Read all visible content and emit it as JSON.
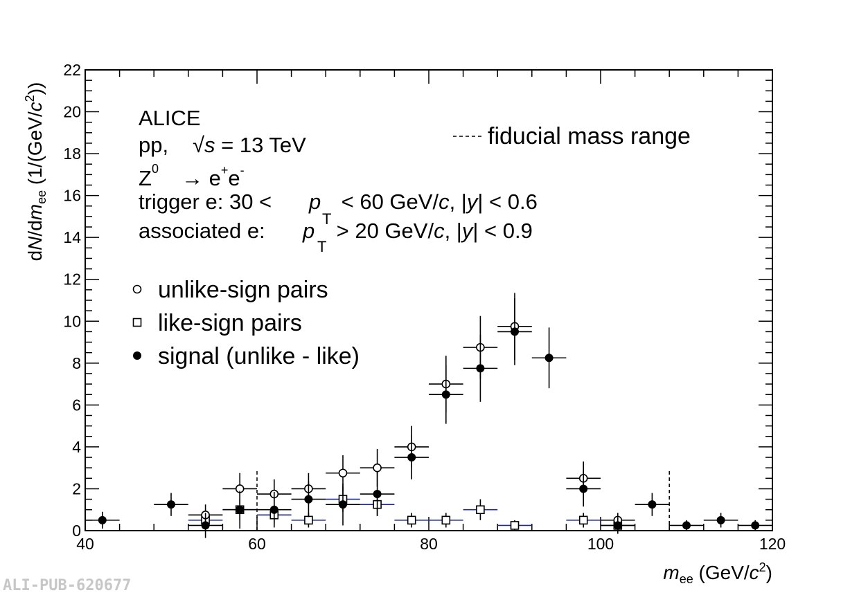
{
  "chart_data": {
    "type": "scatter",
    "xlabel": {
      "pre": "m",
      "sub": "ee",
      "unit_pre": " (GeV/",
      "c": "c",
      "sup": "2",
      "close": ")"
    },
    "ylabel": {
      "pre": "d",
      "N": "N",
      "mid": "/d",
      "m": "m",
      "sub": "ee",
      "unit_pre": " (1/(GeV/",
      "c": "c",
      "sup": "2",
      "close": "))"
    },
    "xlim": [
      40,
      120
    ],
    "ylim": [
      0,
      22
    ],
    "xticks": [
      "40",
      "60",
      "80",
      "100",
      "120"
    ],
    "yticks": [
      "0",
      "2",
      "4",
      "6",
      "8",
      "10",
      "12",
      "14",
      "16",
      "18",
      "20",
      "22"
    ],
    "grid": false,
    "fiducial_range": [
      60,
      108
    ],
    "annotations": {
      "experiment": "ALICE",
      "energy": {
        "pre": "pp,",
        "sqrt": "√",
        "s": "s",
        "post": " = 13 TeV"
      },
      "process": {
        "Z": "Z",
        "zsup": "0",
        "arrow": "→ e",
        "plus": "+",
        "e2": "e",
        "minus": "-"
      },
      "trigger": {
        "pre": "trigger e: 30 <",
        "p": "p",
        "T": "T",
        "mid": " < 60 GeV/",
        "c": "c",
        "mid2": ", |",
        "y": "y",
        "post": "| < 0.6"
      },
      "associated": {
        "pre": "associated e:",
        "p": "p",
        "T": "T",
        "mid": " > 20 GeV/",
        "c": "c",
        "mid2": ", |",
        "y": "y",
        "post": "| < 0.9"
      }
    },
    "legend": {
      "placement": "left",
      "fiducial_label": "fiducial mass range"
    },
    "series": [
      {
        "name": "unlike-sign pairs",
        "marker": "open-circle",
        "color": "#000000",
        "points": [
          {
            "x": 54,
            "y": 0.75,
            "xerr": 2,
            "yerr": 0.5
          },
          {
            "x": 58,
            "y": 2.0,
            "xerr": 2,
            "yerr": 0.75
          },
          {
            "x": 62,
            "y": 1.75,
            "xerr": 2,
            "yerr": 0.7
          },
          {
            "x": 66,
            "y": 2.0,
            "xerr": 2,
            "yerr": 0.75
          },
          {
            "x": 70,
            "y": 2.75,
            "xerr": 2,
            "yerr": 0.85
          },
          {
            "x": 74,
            "y": 3.0,
            "xerr": 2,
            "yerr": 0.9
          },
          {
            "x": 78,
            "y": 4.0,
            "xerr": 2,
            "yerr": 1.0
          },
          {
            "x": 82,
            "y": 7.0,
            "xerr": 2,
            "yerr": 1.35
          },
          {
            "x": 86,
            "y": 8.75,
            "xerr": 2,
            "yerr": 1.5
          },
          {
            "x": 90,
            "y": 9.75,
            "xerr": 2,
            "yerr": 1.6
          },
          {
            "x": 98,
            "y": 2.5,
            "xerr": 2,
            "yerr": 0.8
          },
          {
            "x": 102,
            "y": 0.5,
            "xerr": 2,
            "yerr": 0.35
          }
        ]
      },
      {
        "name": "like-sign pairs",
        "marker": "open-square",
        "color": "#000000",
        "xerr_color": "#1f2a8a",
        "points": [
          {
            "x": 54,
            "y": 0.5,
            "xerr": 2,
            "yerr": 0.35
          },
          {
            "x": 58,
            "y": 1.0,
            "xerr": 2,
            "yerr": 0.5
          },
          {
            "x": 62,
            "y": 0.75,
            "xerr": 2,
            "yerr": 0.45
          },
          {
            "x": 66,
            "y": 0.5,
            "xerr": 2,
            "yerr": 0.35
          },
          {
            "x": 70,
            "y": 1.5,
            "xerr": 2,
            "yerr": 0.6
          },
          {
            "x": 74,
            "y": 1.25,
            "xerr": 2,
            "yerr": 0.55
          },
          {
            "x": 78,
            "y": 0.5,
            "xerr": 2,
            "yerr": 0.35
          },
          {
            "x": 82,
            "y": 0.5,
            "xerr": 2,
            "yerr": 0.35
          },
          {
            "x": 86,
            "y": 1.0,
            "xerr": 2,
            "yerr": 0.5
          },
          {
            "x": 90,
            "y": 0.25,
            "xerr": 2,
            "yerr": 0.25
          },
          {
            "x": 98,
            "y": 0.5,
            "xerr": 2,
            "yerr": 0.35
          },
          {
            "x": 102,
            "y": 0.25,
            "xerr": 2,
            "yerr": 0.25
          }
        ]
      },
      {
        "name": "signal (unlike - like)",
        "marker": "filled-circle",
        "color": "#000000",
        "points": [
          {
            "x": 42,
            "y": 0.5,
            "xerr": 2,
            "yerr": 0.4
          },
          {
            "x": 50,
            "y": 1.25,
            "xerr": 2,
            "yerr": 0.55
          },
          {
            "x": 54,
            "y": 0.25,
            "xerr": 2,
            "yerr": 0.6
          },
          {
            "x": 58,
            "y": 1.0,
            "xerr": 2,
            "yerr": 0.9
          },
          {
            "x": 62,
            "y": 1.0,
            "xerr": 2,
            "yerr": 0.85
          },
          {
            "x": 66,
            "y": 1.5,
            "xerr": 2,
            "yerr": 0.85
          },
          {
            "x": 70,
            "y": 1.25,
            "xerr": 2,
            "yerr": 1.0
          },
          {
            "x": 74,
            "y": 1.75,
            "xerr": 2,
            "yerr": 1.05
          },
          {
            "x": 78,
            "y": 3.5,
            "xerr": 2,
            "yerr": 1.05
          },
          {
            "x": 82,
            "y": 6.5,
            "xerr": 2,
            "yerr": 1.4
          },
          {
            "x": 86,
            "y": 7.75,
            "xerr": 2,
            "yerr": 1.6
          },
          {
            "x": 90,
            "y": 9.5,
            "xerr": 2,
            "yerr": 1.6
          },
          {
            "x": 94,
            "y": 8.25,
            "xerr": 2,
            "yerr": 1.45
          },
          {
            "x": 98,
            "y": 2.0,
            "xerr": 2,
            "yerr": 0.85
          },
          {
            "x": 102,
            "y": 0.25,
            "xerr": 2,
            "yerr": 0.4
          },
          {
            "x": 106,
            "y": 1.25,
            "xerr": 2,
            "yerr": 0.55
          },
          {
            "x": 110,
            "y": 0.25,
            "xerr": 2,
            "yerr": 0.25
          },
          {
            "x": 114,
            "y": 0.5,
            "xerr": 2,
            "yerr": 0.35
          },
          {
            "x": 118,
            "y": 0.25,
            "xerr": 2,
            "yerr": 0.25
          }
        ]
      }
    ]
  },
  "watermark": "ALI-PUB-620677"
}
